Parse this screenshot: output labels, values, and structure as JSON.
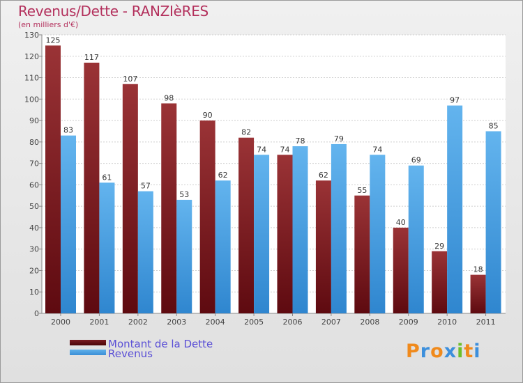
{
  "chart_data": {
    "type": "bar",
    "title": "Revenus/Dette - RANZIèRES",
    "subtitle": "(en milliers d'€)",
    "categories": [
      "2000",
      "2001",
      "2002",
      "2003",
      "2004",
      "2005",
      "2006",
      "2007",
      "2008",
      "2009",
      "2010",
      "2011"
    ],
    "series": [
      {
        "name": "Montant de la Dette",
        "color": "#7a1c22",
        "values": [
          125,
          117,
          107,
          98,
          90,
          82,
          74,
          62,
          55,
          40,
          29,
          18
        ]
      },
      {
        "name": "Revenus",
        "color": "#4fa3e6",
        "values": [
          83,
          61,
          57,
          53,
          62,
          74,
          78,
          79,
          74,
          69,
          97,
          85
        ]
      }
    ],
    "ylim": [
      0,
      130
    ],
    "yticks": [
      0,
      10,
      20,
      30,
      40,
      50,
      60,
      70,
      80,
      90,
      100,
      110,
      120,
      130
    ],
    "grid": true,
    "legend_position": "bottom-left"
  },
  "logo": {
    "letters": [
      "P",
      "r",
      "o",
      "x",
      "i",
      "t",
      "i"
    ],
    "colors": [
      "#f08a1c",
      "#3c8fdc",
      "#f08a1c",
      "#3c8fdc",
      "#6cbf2a",
      "#f08a1c",
      "#3c8fdc"
    ]
  }
}
